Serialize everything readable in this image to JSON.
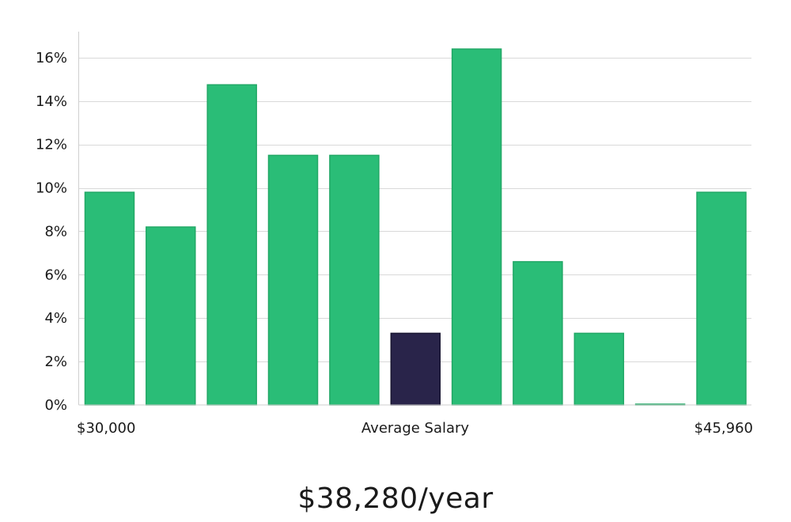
{
  "chart_data": {
    "type": "bar",
    "title": "",
    "xlabel": "Average Salary",
    "ylabel": "",
    "ylim": [
      0,
      17.2
    ],
    "yticks": [
      0,
      2,
      4,
      6,
      8,
      10,
      12,
      14,
      16
    ],
    "ytick_suffix": "%",
    "x_start_label": "$30,000",
    "x_end_label": "$45,960",
    "values": [
      9.8,
      8.2,
      14.75,
      11.5,
      11.5,
      3.3,
      16.4,
      6.6,
      3.3,
      0.0,
      9.8
    ],
    "highlight_index": 5,
    "colors": {
      "bar": "#2abd77",
      "bar_stroke": "#22a866",
      "highlight": "#29244a",
      "highlight_stroke": "#1a1733"
    }
  },
  "summary": {
    "salary_text": "$38,280/year"
  }
}
